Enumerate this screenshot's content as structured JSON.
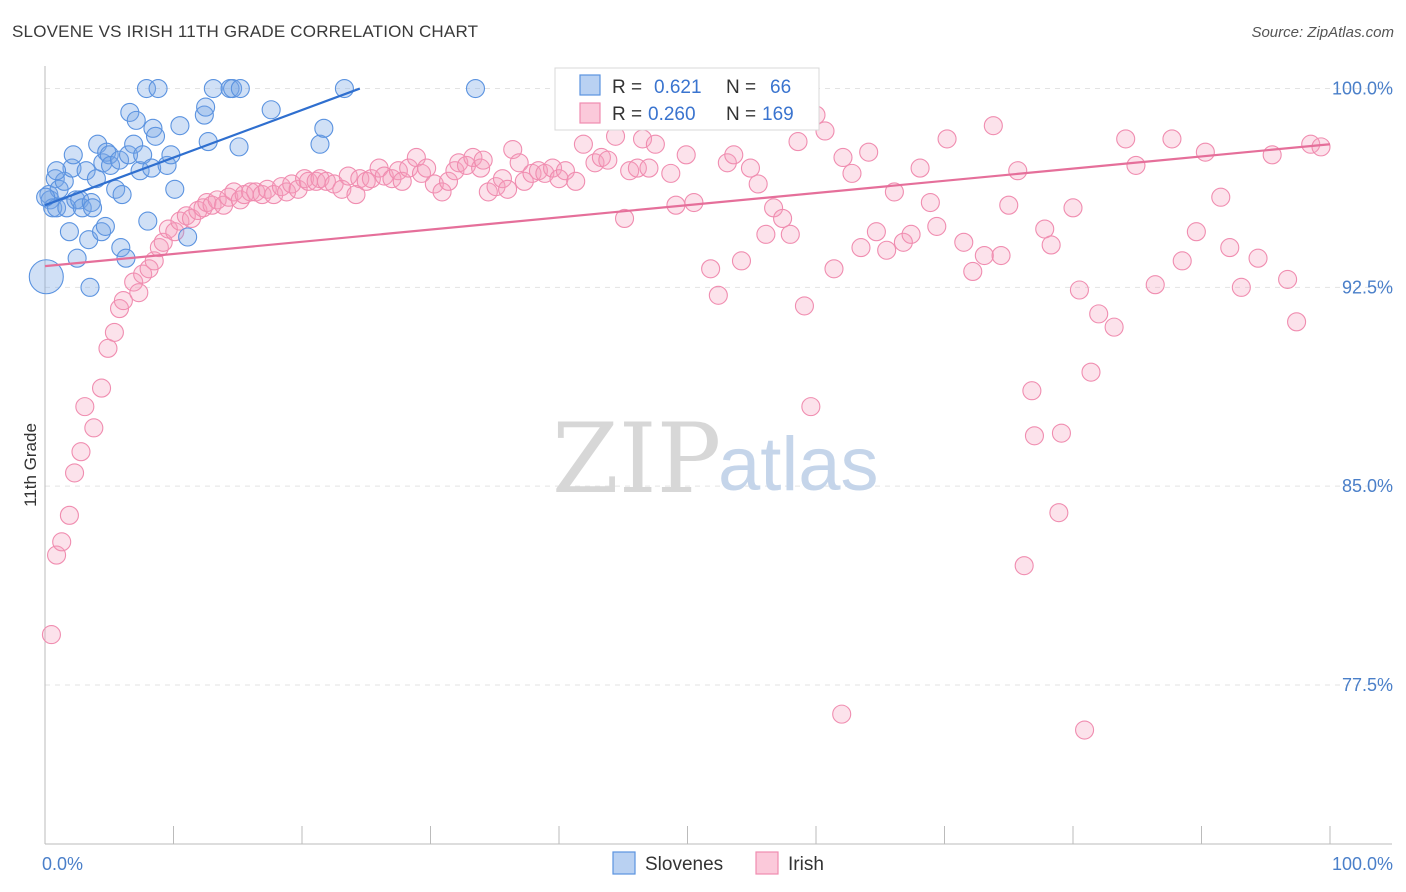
{
  "title": "SLOVENE VS IRISH 11TH GRADE CORRELATION CHART",
  "source": "Source: ZipAtlas.com",
  "watermark": {
    "zip": "ZIP",
    "atlas": "atlas"
  },
  "colors": {
    "blue": "#5b93e0",
    "blue_line": "#2f6fcf",
    "pink": "#f08db0",
    "pink_line": "#e56f9a",
    "tick": "#4a7fc9",
    "grid": "#e3e3e3"
  },
  "chart_data": {
    "type": "scatter",
    "title": "SLOVENE VS IRISH 11TH GRADE CORRELATION CHART",
    "xlabel": "",
    "ylabel": "11th Grade",
    "xlim": [
      0,
      100
    ],
    "ylim": [
      71.5,
      100.7
    ],
    "y_ticks": [
      77.5,
      85.0,
      92.5,
      100.0
    ],
    "y_tick_labels": [
      "77.5%",
      "85.0%",
      "92.5%",
      "100.0%"
    ],
    "x_tick_labels": [
      "0.0%",
      "100.0%"
    ],
    "legend_top": [
      {
        "r_label": "R =",
        "r_value": "0.621",
        "n_label": "N =",
        "n_value": "66"
      },
      {
        "r_label": "R =",
        "r_value": "0.260",
        "n_label": "N =",
        "n_value": "169"
      }
    ],
    "series": [
      {
        "name": "Slovenes",
        "color": "#5b93e0",
        "trend": {
          "x0": 0,
          "y0": 95.6,
          "x1": 24.5,
          "y1": 100.0
        },
        "points": [
          [
            0.1,
            92.9
          ],
          [
            0.3,
            96.0
          ],
          [
            0.4,
            95.8
          ],
          [
            0.6,
            95.5
          ],
          [
            0.8,
            96.6
          ],
          [
            0.9,
            95.5
          ],
          [
            1.1,
            96.2
          ],
          [
            1.5,
            96.5
          ],
          [
            1.7,
            95.5
          ],
          [
            1.9,
            94.6
          ],
          [
            2.1,
            97.0
          ],
          [
            2.2,
            97.5
          ],
          [
            2.4,
            95.8
          ],
          [
            2.5,
            93.6
          ],
          [
            2.7,
            95.8
          ],
          [
            2.9,
            95.5
          ],
          [
            3.2,
            96.9
          ],
          [
            3.4,
            94.3
          ],
          [
            3.5,
            92.5
          ],
          [
            3.6,
            95.7
          ],
          [
            3.7,
            95.5
          ],
          [
            4.0,
            96.6
          ],
          [
            4.1,
            97.9
          ],
          [
            4.4,
            94.6
          ],
          [
            4.5,
            97.2
          ],
          [
            4.7,
            94.8
          ],
          [
            4.8,
            97.6
          ],
          [
            5.0,
            97.5
          ],
          [
            5.1,
            97.1
          ],
          [
            5.5,
            96.2
          ],
          [
            5.8,
            97.3
          ],
          [
            5.9,
            94.0
          ],
          [
            6.0,
            96.0
          ],
          [
            6.3,
            93.6
          ],
          [
            6.5,
            97.5
          ],
          [
            6.6,
            99.1
          ],
          [
            6.9,
            97.9
          ],
          [
            7.1,
            98.8
          ],
          [
            7.4,
            96.9
          ],
          [
            7.6,
            97.5
          ],
          [
            7.9,
            100.0
          ],
          [
            8.0,
            95.0
          ],
          [
            8.3,
            97.0
          ],
          [
            8.4,
            98.5
          ],
          [
            8.6,
            98.2
          ],
          [
            8.8,
            100.0
          ],
          [
            9.5,
            97.1
          ],
          [
            9.8,
            97.5
          ],
          [
            10.1,
            96.2
          ],
          [
            10.5,
            98.6
          ],
          [
            11.1,
            94.4
          ],
          [
            12.4,
            99.0
          ],
          [
            12.5,
            99.3
          ],
          [
            12.7,
            98.0
          ],
          [
            13.1,
            100.0
          ],
          [
            14.4,
            100.0
          ],
          [
            14.6,
            100.0
          ],
          [
            15.1,
            97.8
          ],
          [
            15.2,
            100.0
          ],
          [
            17.6,
            99.2
          ],
          [
            21.4,
            97.9
          ],
          [
            21.7,
            98.5
          ],
          [
            23.3,
            100.0
          ],
          [
            33.5,
            100.0
          ],
          [
            0.05,
            95.9
          ],
          [
            0.9,
            96.9
          ]
        ]
      },
      {
        "name": "Irish",
        "color": "#f08db0",
        "trend": {
          "x0": 0,
          "y0": 93.3,
          "x1": 100,
          "y1": 97.9
        },
        "points": [
          [
            0.5,
            79.4
          ],
          [
            0.9,
            82.4
          ],
          [
            1.3,
            82.9
          ],
          [
            1.9,
            83.9
          ],
          [
            2.3,
            85.5
          ],
          [
            2.8,
            86.3
          ],
          [
            3.1,
            88.0
          ],
          [
            3.8,
            87.2
          ],
          [
            4.4,
            88.7
          ],
          [
            4.9,
            90.2
          ],
          [
            5.4,
            90.8
          ],
          [
            5.8,
            91.7
          ],
          [
            6.1,
            92.0
          ],
          [
            6.9,
            92.7
          ],
          [
            7.3,
            92.3
          ],
          [
            7.6,
            93.0
          ],
          [
            8.1,
            93.2
          ],
          [
            8.5,
            93.5
          ],
          [
            8.9,
            94.0
          ],
          [
            9.2,
            94.2
          ],
          [
            9.6,
            94.7
          ],
          [
            10.1,
            94.6
          ],
          [
            10.5,
            95.0
          ],
          [
            11.0,
            95.2
          ],
          [
            11.4,
            95.1
          ],
          [
            11.9,
            95.4
          ],
          [
            12.3,
            95.5
          ],
          [
            12.6,
            95.7
          ],
          [
            13.0,
            95.6
          ],
          [
            13.4,
            95.8
          ],
          [
            13.9,
            95.6
          ],
          [
            14.3,
            95.9
          ],
          [
            14.7,
            96.1
          ],
          [
            15.2,
            95.8
          ],
          [
            15.5,
            96.0
          ],
          [
            16.0,
            96.1
          ],
          [
            16.4,
            96.1
          ],
          [
            16.9,
            96.0
          ],
          [
            17.3,
            96.2
          ],
          [
            17.8,
            96.0
          ],
          [
            18.4,
            96.3
          ],
          [
            18.8,
            96.1
          ],
          [
            19.2,
            96.4
          ],
          [
            19.7,
            96.2
          ],
          [
            20.2,
            96.6
          ],
          [
            20.5,
            96.5
          ],
          [
            21.1,
            96.5
          ],
          [
            21.4,
            96.6
          ],
          [
            21.9,
            96.5
          ],
          [
            22.5,
            96.4
          ],
          [
            23.1,
            96.2
          ],
          [
            23.6,
            96.7
          ],
          [
            24.2,
            96.0
          ],
          [
            24.5,
            96.6
          ],
          [
            25.0,
            96.5
          ],
          [
            25.4,
            96.6
          ],
          [
            26.0,
            97.0
          ],
          [
            26.4,
            96.7
          ],
          [
            27.0,
            96.6
          ],
          [
            27.5,
            96.9
          ],
          [
            27.8,
            96.5
          ],
          [
            28.3,
            97.0
          ],
          [
            28.9,
            97.4
          ],
          [
            29.3,
            96.8
          ],
          [
            29.7,
            97.0
          ],
          [
            30.3,
            96.4
          ],
          [
            30.9,
            96.1
          ],
          [
            31.4,
            96.5
          ],
          [
            31.9,
            96.9
          ],
          [
            32.2,
            97.2
          ],
          [
            32.8,
            97.1
          ],
          [
            33.3,
            97.4
          ],
          [
            33.9,
            97.0
          ],
          [
            34.1,
            97.3
          ],
          [
            34.5,
            96.1
          ],
          [
            35.1,
            96.3
          ],
          [
            35.6,
            96.6
          ],
          [
            36.0,
            96.2
          ],
          [
            36.4,
            97.7
          ],
          [
            36.9,
            97.2
          ],
          [
            37.3,
            96.5
          ],
          [
            37.9,
            96.8
          ],
          [
            38.4,
            96.9
          ],
          [
            38.9,
            96.8
          ],
          [
            39.5,
            97.0
          ],
          [
            40.0,
            96.6
          ],
          [
            40.5,
            96.9
          ],
          [
            41.3,
            96.5
          ],
          [
            41.9,
            97.9
          ],
          [
            42.4,
            99.1
          ],
          [
            42.8,
            97.2
          ],
          [
            43.3,
            97.4
          ],
          [
            43.8,
            97.3
          ],
          [
            44.4,
            98.2
          ],
          [
            45.1,
            95.1
          ],
          [
            45.5,
            96.9
          ],
          [
            46.1,
            97.0
          ],
          [
            46.5,
            98.1
          ],
          [
            47.0,
            97.0
          ],
          [
            47.5,
            97.9
          ],
          [
            48.2,
            99.2
          ],
          [
            48.7,
            96.8
          ],
          [
            49.1,
            95.6
          ],
          [
            49.9,
            97.5
          ],
          [
            50.5,
            95.7
          ],
          [
            51.2,
            99.0
          ],
          [
            51.8,
            93.2
          ],
          [
            52.4,
            92.2
          ],
          [
            53.1,
            97.2
          ],
          [
            53.6,
            97.5
          ],
          [
            54.2,
            93.5
          ],
          [
            54.9,
            97.0
          ],
          [
            55.5,
            96.4
          ],
          [
            56.1,
            94.5
          ],
          [
            56.7,
            95.5
          ],
          [
            57.4,
            95.1
          ],
          [
            58.0,
            94.5
          ],
          [
            58.6,
            98.0
          ],
          [
            59.1,
            91.8
          ],
          [
            59.6,
            88.0
          ],
          [
            60.0,
            99.0
          ],
          [
            60.7,
            98.4
          ],
          [
            61.4,
            93.2
          ],
          [
            62.1,
            97.4
          ],
          [
            62.8,
            96.8
          ],
          [
            63.5,
            94.0
          ],
          [
            64.1,
            97.6
          ],
          [
            64.7,
            94.6
          ],
          [
            65.5,
            93.9
          ],
          [
            66.1,
            96.1
          ],
          [
            66.8,
            94.2
          ],
          [
            67.4,
            94.5
          ],
          [
            68.1,
            97.0
          ],
          [
            68.9,
            95.7
          ],
          [
            69.4,
            94.8
          ],
          [
            70.2,
            98.1
          ],
          [
            71.5,
            94.2
          ],
          [
            72.2,
            93.1
          ],
          [
            73.1,
            93.7
          ],
          [
            73.8,
            98.6
          ],
          [
            74.4,
            93.7
          ],
          [
            75.0,
            95.6
          ],
          [
            75.7,
            96.9
          ],
          [
            76.2,
            82.0
          ],
          [
            77.0,
            86.9
          ],
          [
            77.8,
            94.7
          ],
          [
            78.3,
            94.1
          ],
          [
            79.1,
            87.0
          ],
          [
            80.0,
            95.5
          ],
          [
            80.5,
            92.4
          ],
          [
            81.4,
            89.3
          ],
          [
            82.0,
            91.5
          ],
          [
            83.2,
            91.0
          ],
          [
            84.1,
            98.1
          ],
          [
            84.9,
            97.1
          ],
          [
            86.4,
            92.6
          ],
          [
            87.7,
            98.1
          ],
          [
            88.5,
            93.5
          ],
          [
            89.6,
            94.6
          ],
          [
            90.3,
            97.6
          ],
          [
            91.5,
            95.9
          ],
          [
            92.2,
            94.0
          ],
          [
            93.1,
            92.5
          ],
          [
            94.4,
            93.6
          ],
          [
            95.5,
            97.5
          ],
          [
            96.7,
            92.8
          ],
          [
            97.4,
            91.2
          ],
          [
            98.5,
            97.9
          ],
          [
            99.3,
            97.8
          ],
          [
            62.0,
            76.4
          ],
          [
            80.9,
            75.8
          ],
          [
            78.9,
            84.0
          ],
          [
            76.8,
            88.6
          ]
        ]
      }
    ]
  },
  "legend_bottom": {
    "items": [
      "Slovenes",
      "Irish"
    ]
  }
}
